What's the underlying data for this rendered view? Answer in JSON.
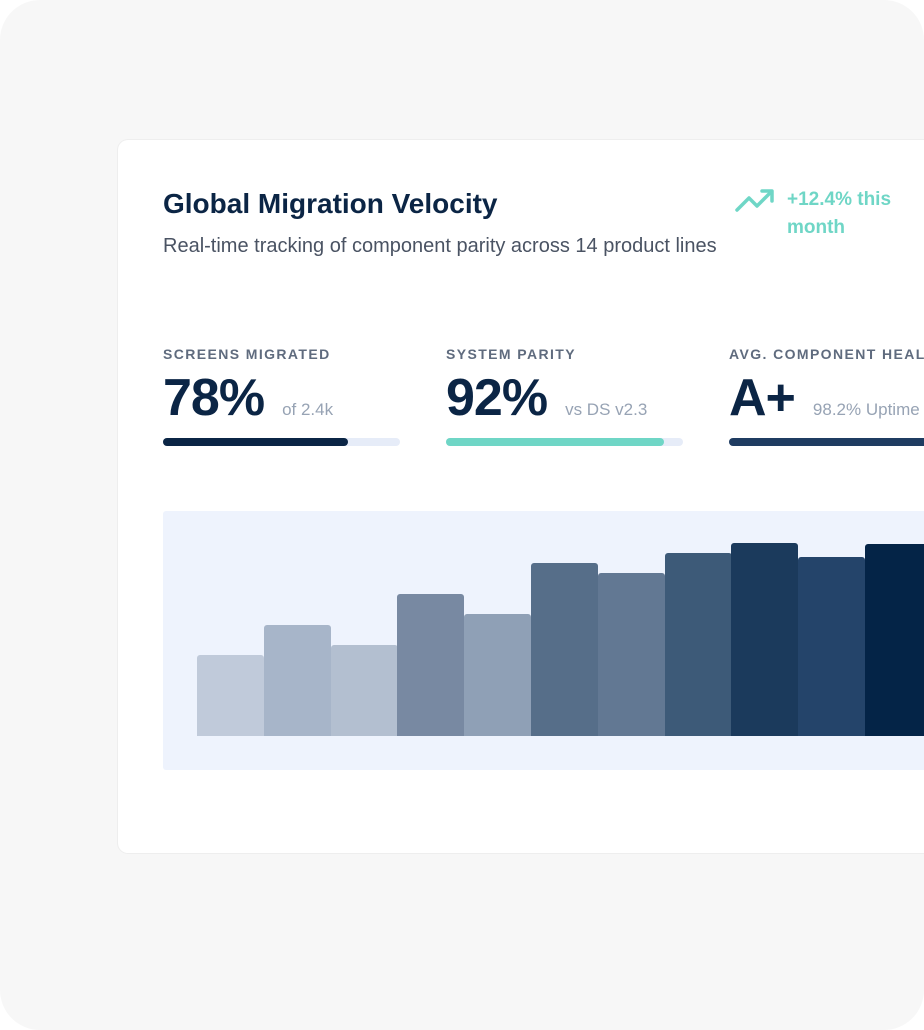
{
  "header": {
    "title": "Global Migration Velocity",
    "subtitle": "Real-time tracking of component parity across 14 product lines",
    "trend": "+12.4% this month"
  },
  "metrics": [
    {
      "label": "SCREENS MIGRATED",
      "value": "78%",
      "sub": "of 2.4k",
      "progress": 78,
      "color": "#0b2545"
    },
    {
      "label": "SYSTEM PARITY",
      "value": "92%",
      "sub": "vs DS v2.3",
      "progress": 92,
      "color": "#6fd6c6"
    },
    {
      "label": "AVG. COMPONENT HEALTH",
      "value": "A+",
      "sub": "98.2% Uptime",
      "progress": 98.2,
      "color": "#1f3c61"
    }
  ],
  "chart": {
    "values": [
      81,
      111,
      91,
      142,
      122,
      173,
      163,
      183,
      193,
      179,
      192
    ],
    "colors": [
      "#c0cada",
      "#a7b5c9",
      "#b3bfd0",
      "#7889a2",
      "#8fa0b6",
      "#566e89",
      "#627893",
      "#3d5a78",
      "#1b3a5c",
      "#24446a",
      "#042447"
    ]
  }
}
